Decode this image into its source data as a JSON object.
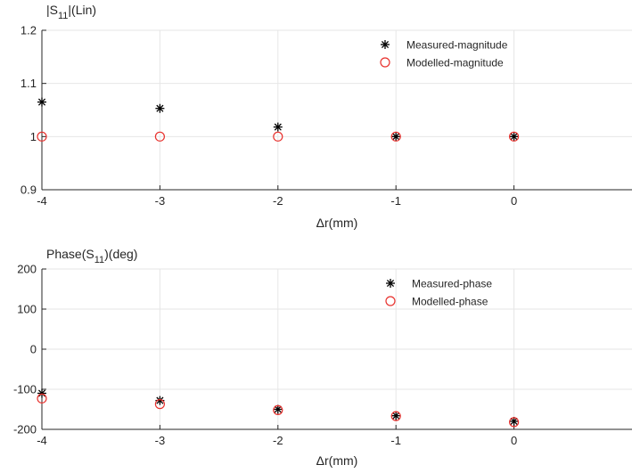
{
  "chart_data": [
    {
      "type": "scatter",
      "ylabel_main": "|S",
      "ylabel_sub": "11",
      "ylabel_tail": "|(Lin)",
      "xlabel": "Δr(mm)",
      "xlim": [
        -4,
        1
      ],
      "ylim": [
        0.9,
        1.2
      ],
      "xticks": [
        -4,
        -3,
        -2,
        -1,
        0
      ],
      "xtick_labels": [
        "-4",
        "-3",
        "-2",
        "-1",
        "0"
      ],
      "yticks": [
        0.9,
        1.0,
        1.1,
        1.2
      ],
      "ytick_labels": [
        "0.9",
        "1",
        "1.1",
        "1.2"
      ],
      "grid": true,
      "legend_position": "top-right",
      "series": [
        {
          "name": "Measured-magnitude",
          "marker": "asterisk",
          "color": "#000000",
          "x": [
            -4,
            -3,
            -2,
            -1,
            0
          ],
          "y": [
            1.065,
            1.053,
            1.018,
            1.0,
            1.0
          ]
        },
        {
          "name": "Modelled-magnitude",
          "marker": "circle",
          "color": "#e8312d",
          "x": [
            -4,
            -3,
            -2,
            -1,
            0
          ],
          "y": [
            1.0,
            1.0,
            1.0,
            1.0,
            1.0
          ]
        }
      ]
    },
    {
      "type": "scatter",
      "ylabel_main": "Phase(S",
      "ylabel_sub": "11",
      "ylabel_tail": ")(deg)",
      "xlabel": "Δr(mm)",
      "xlim": [
        -4,
        1
      ],
      "ylim": [
        -200,
        200
      ],
      "xticks": [
        -4,
        -3,
        -2,
        -1,
        0
      ],
      "xtick_labels": [
        "-4",
        "-3",
        "-2",
        "-1",
        "0"
      ],
      "yticks": [
        -200,
        -100,
        0,
        100,
        200
      ],
      "ytick_labels": [
        "-200",
        "-100",
        "0",
        "100",
        "200"
      ],
      "grid": true,
      "legend_position": "top-right",
      "series": [
        {
          "name": "Measured-phase",
          "marker": "asterisk",
          "color": "#000000",
          "x": [
            -4,
            -3,
            -2,
            -1,
            0
          ],
          "y": [
            -110,
            -128,
            -150,
            -166,
            -180
          ]
        },
        {
          "name": "Modelled-phase",
          "marker": "circle",
          "color": "#e8312d",
          "x": [
            -4,
            -3,
            -2,
            -1,
            0
          ],
          "y": [
            -123,
            -137,
            -152,
            -167,
            -182
          ]
        }
      ]
    }
  ]
}
